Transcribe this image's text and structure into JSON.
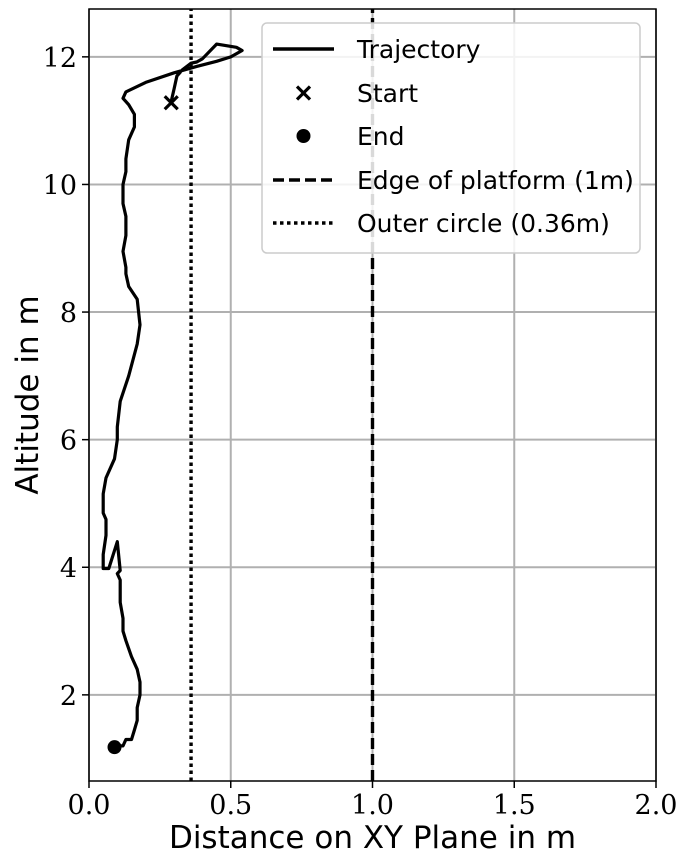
{
  "chart_data": {
    "type": "line",
    "xlabel": "Distance on XY Plane in m",
    "ylabel": "Altitude in m",
    "xlim": [
      0.0,
      2.0
    ],
    "ylim": [
      0.65,
      12.75
    ],
    "xticks": [
      "0.0",
      "0.5",
      "1.0",
      "1.5",
      "2.0"
    ],
    "yticks": [
      "2",
      "4",
      "6",
      "8",
      "10",
      "12"
    ],
    "grid": true,
    "legend_position": "top-right",
    "series": [
      {
        "name": "Trajectory",
        "style": "solid",
        "x": [
          0.29,
          0.3,
          0.31,
          0.33,
          0.36,
          0.38,
          0.4,
          0.45,
          0.52,
          0.54,
          0.5,
          0.45,
          0.38,
          0.3,
          0.2,
          0.13,
          0.12,
          0.14,
          0.16,
          0.16,
          0.14,
          0.13,
          0.13,
          0.12,
          0.12,
          0.13,
          0.13,
          0.12,
          0.13,
          0.13,
          0.14,
          0.17,
          0.18,
          0.17,
          0.14,
          0.11,
          0.1,
          0.1,
          0.09,
          0.06,
          0.05,
          0.05,
          0.06,
          0.06,
          0.05,
          0.05,
          0.07,
          0.1,
          0.11,
          0.1,
          0.11,
          0.11,
          0.12,
          0.12,
          0.13,
          0.15,
          0.17,
          0.18,
          0.18,
          0.17,
          0.17,
          0.16,
          0.15,
          0.13,
          0.12,
          0.11,
          0.09
        ],
        "y": [
          11.3,
          11.5,
          11.7,
          11.8,
          11.9,
          11.92,
          11.97,
          12.2,
          12.15,
          12.1,
          12.0,
          11.93,
          11.85,
          11.75,
          11.6,
          11.45,
          11.35,
          11.25,
          11.1,
          10.9,
          10.7,
          10.4,
          10.2,
          10.0,
          9.7,
          9.5,
          9.2,
          8.95,
          8.7,
          8.6,
          8.4,
          8.2,
          7.8,
          7.5,
          7.0,
          6.6,
          6.2,
          6.0,
          5.7,
          5.4,
          5.15,
          4.85,
          4.75,
          4.5,
          4.2,
          3.98,
          3.98,
          4.4,
          3.95,
          3.9,
          3.8,
          3.45,
          3.2,
          3.0,
          2.85,
          2.6,
          2.4,
          2.2,
          2.0,
          1.8,
          1.6,
          1.45,
          1.3,
          1.3,
          1.2,
          1.2,
          1.18
        ]
      },
      {
        "name": "Edge of platform (1m)",
        "style": "dashed",
        "x": [
          1.0,
          1.0
        ],
        "y": [
          0.65,
          12.75
        ]
      },
      {
        "name": "Outer circle (0.36m)",
        "style": "dotted",
        "x": [
          0.36,
          0.36
        ],
        "y": [
          0.65,
          12.75
        ]
      }
    ],
    "markers": [
      {
        "name": "Start",
        "marker": "x",
        "x": 0.29,
        "y": 11.28
      },
      {
        "name": "End",
        "marker": "o",
        "x": 0.09,
        "y": 1.18
      }
    ],
    "legend": [
      "Trajectory",
      "Start",
      "End",
      "Edge of platform (1m)",
      "Outer circle (0.36m)"
    ],
    "colors": {
      "line": "#000000",
      "grid": "#b0b0b0",
      "frame": "#000000"
    }
  }
}
